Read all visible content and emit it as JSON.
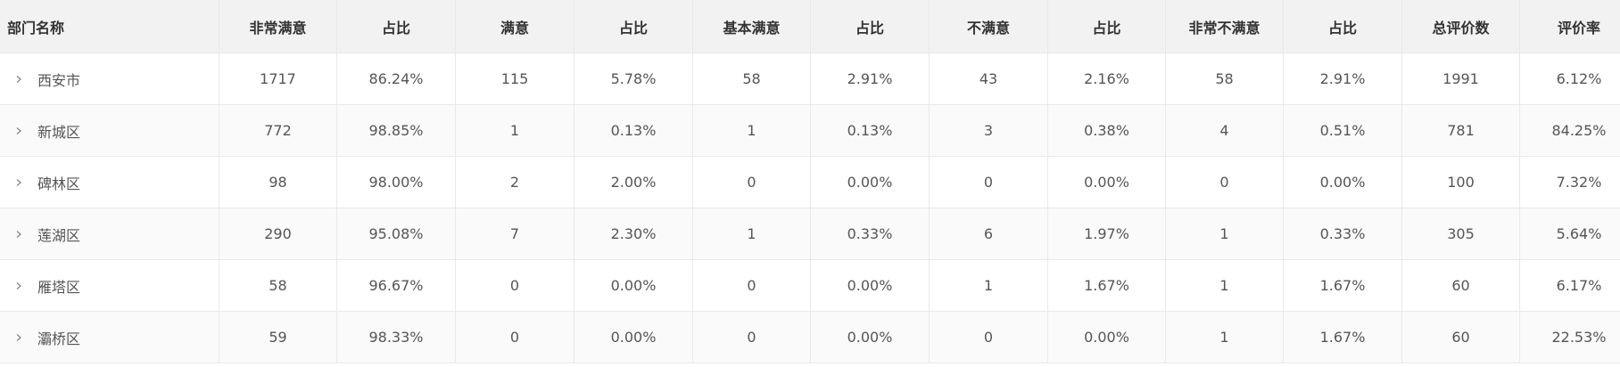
{
  "table": {
    "headers": [
      "部门名称",
      "非常满意",
      "占比",
      "满意",
      "占比",
      "基本满意",
      "占比",
      "不满意",
      "占比",
      "非常不满意",
      "占比",
      "总评价数",
      "评价率"
    ],
    "rows": [
      [
        "西安市",
        "1717",
        "86.24%",
        "115",
        "5.78%",
        "58",
        "2.91%",
        "43",
        "2.16%",
        "58",
        "2.91%",
        "1991",
        "6.12%"
      ],
      [
        "新城区",
        "772",
        "98.85%",
        "1",
        "0.13%",
        "1",
        "0.13%",
        "3",
        "0.38%",
        "4",
        "0.51%",
        "781",
        "84.25%"
      ],
      [
        "碑林区",
        "98",
        "98.00%",
        "2",
        "2.00%",
        "0",
        "0.00%",
        "0",
        "0.00%",
        "0",
        "0.00%",
        "100",
        "7.32%"
      ],
      [
        "莲湖区",
        "290",
        "95.08%",
        "7",
        "2.30%",
        "1",
        "0.33%",
        "6",
        "1.97%",
        "1",
        "0.33%",
        "305",
        "5.64%"
      ],
      [
        "雁塔区",
        "58",
        "96.67%",
        "0",
        "0.00%",
        "0",
        "0.00%",
        "1",
        "1.67%",
        "1",
        "1.67%",
        "60",
        "6.17%"
      ],
      [
        "灞桥区",
        "59",
        "98.33%",
        "0",
        "0.00%",
        "0",
        "0.00%",
        "0",
        "0.00%",
        "1",
        "1.67%",
        "60",
        "22.53%"
      ]
    ]
  },
  "icons": {
    "expand": "chevron-right-icon"
  }
}
